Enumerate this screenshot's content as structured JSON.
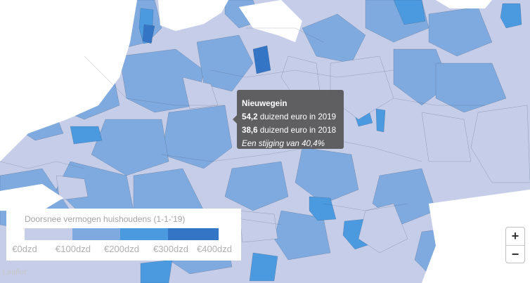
{
  "map": {
    "colors": {
      "bin0": "#c5cde9",
      "bin1": "#7faadf",
      "bin2": "#4b9ae0",
      "bin3": "#3476c5",
      "border": "#2d3d52",
      "water": "#ffffff"
    }
  },
  "tooltip": {
    "title": "Nieuwegein",
    "value_2019": "54,2",
    "text_2019": "duizend euro in 2019",
    "value_2018": "38,6",
    "text_2018": "duizend euro in 2018",
    "change": "Een stijging van 40,4%"
  },
  "legend": {
    "title": "Doorsnee vermogen huishoudens (1-1-'19)",
    "labels": [
      "€0dzd",
      "€100dzd",
      "€200dzd",
      "€300dzd",
      "€400dzd"
    ],
    "colors": [
      "#c5cde9",
      "#7faadf",
      "#4b9ae0",
      "#3476c5"
    ]
  },
  "zoom": {
    "in_label": "+",
    "out_label": "−"
  },
  "attribution": "Leaflet"
}
